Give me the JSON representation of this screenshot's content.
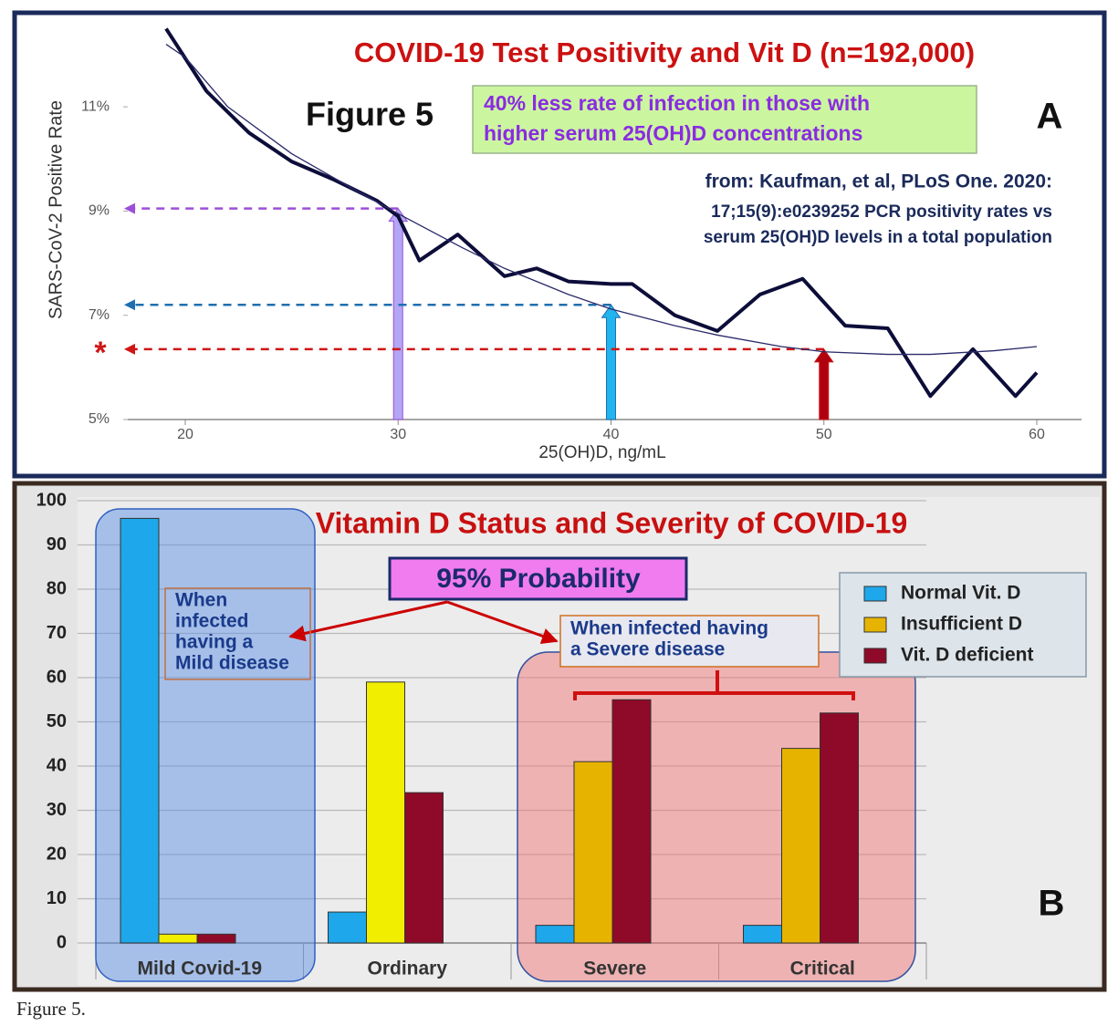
{
  "chart_data": [
    {
      "type": "line",
      "title": "COVID-19 Test Positivity and Vit D (n=192,000)",
      "figure_label": "Figure 5",
      "panel_label": "A",
      "highlight": [
        "40% less rate of infection in those with",
        "higher serum 25(OH)D concentrations"
      ],
      "source": [
        "from: Kaufman, et al, PLoS One. 2020:",
        "17;15(9):e0239252 PCR positivity rates vs",
        "serum 25(OH)D levels in a total population"
      ],
      "marker_label": "*",
      "xlabel": "25(OH)D, ng/mL",
      "ylabel": "SARS-CoV-2 Positive Rate",
      "xlim": [
        17.3,
        62.1
      ],
      "ylim": [
        5,
        12.7
      ],
      "xticks": [
        20,
        30,
        40,
        50,
        60
      ],
      "yticks": [
        {
          "value": 5,
          "label": "5%"
        },
        {
          "value": 7,
          "label": "7%"
        },
        {
          "value": 9,
          "label": "9%"
        },
        {
          "value": 11,
          "label": "11%"
        }
      ],
      "series": [
        {
          "color": "#0d0d3a",
          "x": [
            19.1,
            21,
            23,
            25,
            27,
            29,
            30,
            31,
            32.8,
            35,
            36.5,
            38,
            40,
            41,
            43,
            45,
            47,
            49,
            51,
            53,
            55,
            57,
            59,
            60
          ],
          "values": [
            12.5,
            11.3,
            10.5,
            9.95,
            9.6,
            9.2,
            8.9,
            8.05,
            8.55,
            7.75,
            7.9,
            7.65,
            7.6,
            7.6,
            7.0,
            6.7,
            7.4,
            7.7,
            6.8,
            6.75,
            5.45,
            6.35,
            5.45,
            5.9
          ]
        },
        {
          "color": "#2a2a6a",
          "x": [
            19.1,
            20,
            22,
            25,
            28,
            30,
            33,
            35,
            38,
            40,
            43,
            45,
            48,
            50,
            53,
            55,
            58,
            60
          ],
          "values": [
            12.2,
            11.95,
            11.0,
            10.1,
            9.4,
            8.95,
            8.3,
            7.9,
            7.4,
            7.12,
            6.8,
            6.62,
            6.4,
            6.3,
            6.25,
            6.25,
            6.32,
            6.4
          ]
        }
      ],
      "reference_points": [
        {
          "x": 30,
          "y": 9.05,
          "color": "#9b4fd8",
          "fill": "#b3a6f5"
        },
        {
          "x": 40,
          "y": 7.2,
          "color": "#1f6fb0",
          "fill": "#22b4ee"
        },
        {
          "x": 50,
          "y": 6.35,
          "color": "#d01515",
          "fill": "#b00010"
        }
      ]
    },
    {
      "type": "bar",
      "title": "Vitamin D Status and Severity of COVID-19",
      "panel_label": "B",
      "callout": "95% Probability",
      "notes": [
        [
          "When",
          "infected",
          "having a",
          "Mild disease"
        ],
        [
          "When infected having",
          "a Severe disease"
        ]
      ],
      "categories": [
        "Mild Covid-19",
        "Ordinary",
        "Severe",
        "Critical"
      ],
      "ylim": [
        0,
        100
      ],
      "yticks": [
        0,
        10,
        20,
        30,
        40,
        50,
        60,
        70,
        80,
        90,
        100
      ],
      "grid": true,
      "series": [
        {
          "name": "Normal Vit. D",
          "color": "#1ea7ea",
          "values": [
            96,
            7,
            4,
            4
          ]
        },
        {
          "name": "Insufficient D",
          "color": "#e6b400",
          "bar_colors": [
            "#f2ee00",
            "#f2ee00",
            "#e6b400",
            "#e6b400"
          ],
          "values": [
            2,
            59,
            41,
            44
          ]
        },
        {
          "name": "Vit. D deficient",
          "color": "#8f0a28",
          "values": [
            2,
            34,
            55,
            52
          ]
        }
      ]
    }
  ],
  "caption": "Figure 5."
}
